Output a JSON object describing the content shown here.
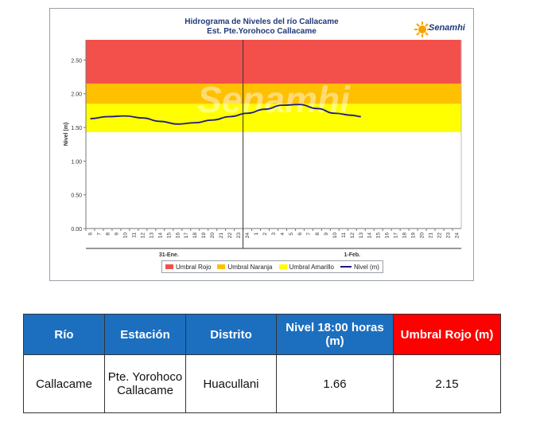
{
  "chart_data": {
    "type": "line",
    "title": "Hidrograma de Niveles del río Callacame",
    "subtitle": "Est. Pte.Yorohoco Callacame",
    "logo_text": "Senamhi",
    "watermark": "Senamhi",
    "ylabel": "Nivel (m)",
    "ylim": [
      0,
      2.8
    ],
    "yticks": [
      "0.00",
      "0.50",
      "1.00",
      "1.50",
      "2.00",
      "2.50"
    ],
    "xticks": [
      "6",
      "7",
      "8",
      "9",
      "10",
      "11",
      "12",
      "13",
      "14",
      "15",
      "16",
      "17",
      "18",
      "19",
      "20",
      "21",
      "22",
      "23",
      "24",
      "1",
      "2",
      "3",
      "4",
      "5",
      "6",
      "7",
      "8",
      "9",
      "10",
      "11",
      "12",
      "13",
      "14",
      "15",
      "16",
      "17",
      "18",
      "19",
      "20",
      "21",
      "22",
      "23",
      "24"
    ],
    "day_labels": [
      {
        "label": "31-Ene.",
        "center_index": 9
      },
      {
        "label": "1-Feb.",
        "center_index": 30
      }
    ],
    "day_divider_index": 18,
    "thresholds": [
      {
        "name": "Umbral Rojo",
        "from": 2.15,
        "to": 2.8,
        "color": "#f4504b"
      },
      {
        "name": "Umbral Naranja",
        "from": 1.85,
        "to": 2.15,
        "color": "#ffc000"
      },
      {
        "name": "Umbral Amarillo",
        "from": 1.43,
        "to": 1.85,
        "color": "#ffff00"
      }
    ],
    "series": [
      {
        "name": "Nivel (m)",
        "color": "#1a1a7e",
        "points": [
          [
            0,
            1.63
          ],
          [
            2,
            1.66
          ],
          [
            4,
            1.67
          ],
          [
            6,
            1.64
          ],
          [
            8,
            1.59
          ],
          [
            10,
            1.55
          ],
          [
            12,
            1.57
          ],
          [
            14,
            1.61
          ],
          [
            16,
            1.66
          ],
          [
            18,
            1.71
          ],
          [
            20,
            1.77
          ],
          [
            22,
            1.83
          ],
          [
            24,
            1.84
          ],
          [
            26,
            1.78
          ],
          [
            28,
            1.71
          ],
          [
            30,
            1.68
          ],
          [
            31,
            1.66
          ]
        ]
      }
    ],
    "legend_position": "bottom"
  },
  "table": {
    "headers": [
      {
        "label": "Río",
        "style": "blue"
      },
      {
        "label": "Estación",
        "style": "blue"
      },
      {
        "label": "Distrito",
        "style": "blue"
      },
      {
        "label": "Nivel  18:00 horas (m)",
        "style": "blue"
      },
      {
        "label": "Umbral Rojo (m)",
        "style": "red"
      }
    ],
    "rows": [
      [
        "Callacame",
        "Pte. Yorohoco Callacame",
        "Huacullani",
        "1.66",
        "2.15"
      ]
    ]
  }
}
